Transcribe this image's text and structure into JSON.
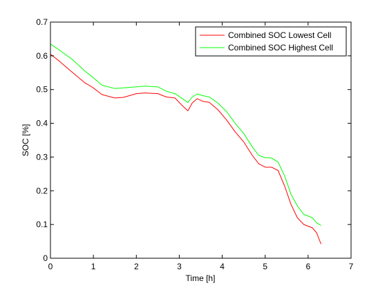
{
  "chart_data": {
    "type": "line",
    "title": "",
    "xlabel": "Time [h]",
    "ylabel": "SOC [%]",
    "xlim": [
      0,
      7
    ],
    "ylim": [
      0,
      0.7
    ],
    "xticks": [
      "0",
      "1",
      "2",
      "3",
      "4",
      "5",
      "6",
      "7"
    ],
    "yticks": [
      "0",
      "0.1",
      "0.2",
      "0.3",
      "0.4",
      "0.5",
      "0.6",
      "0.7"
    ],
    "grid": false,
    "legend_position": "top-right",
    "series": [
      {
        "name": "Combined SOC Lowest Cell",
        "color": "#ff0000",
        "x": [
          0.0,
          0.2,
          0.5,
          0.8,
          1.0,
          1.2,
          1.5,
          1.7,
          2.0,
          2.2,
          2.5,
          2.7,
          2.9,
          3.05,
          3.2,
          3.3,
          3.42,
          3.55,
          3.7,
          3.9,
          4.1,
          4.3,
          4.5,
          4.7,
          4.85,
          5.0,
          5.15,
          5.3,
          5.45,
          5.6,
          5.75,
          5.9,
          6.1,
          6.2,
          6.3
        ],
        "y": [
          0.605,
          0.585,
          0.552,
          0.52,
          0.505,
          0.485,
          0.475,
          0.477,
          0.488,
          0.49,
          0.488,
          0.478,
          0.475,
          0.455,
          0.437,
          0.46,
          0.473,
          0.465,
          0.462,
          0.44,
          0.41,
          0.375,
          0.345,
          0.305,
          0.28,
          0.27,
          0.27,
          0.26,
          0.215,
          0.16,
          0.12,
          0.1,
          0.09,
          0.075,
          0.042
        ]
      },
      {
        "name": "Combined SOC Highest Cell",
        "color": "#00ff00",
        "x": [
          0.0,
          0.2,
          0.5,
          0.8,
          1.0,
          1.2,
          1.5,
          1.7,
          2.0,
          2.2,
          2.5,
          2.7,
          2.9,
          3.05,
          3.2,
          3.3,
          3.42,
          3.55,
          3.7,
          3.9,
          4.1,
          4.3,
          4.5,
          4.7,
          4.85,
          5.0,
          5.15,
          5.3,
          5.45,
          5.6,
          5.75,
          5.9,
          6.1,
          6.2,
          6.3
        ],
        "y": [
          0.635,
          0.618,
          0.59,
          0.555,
          0.535,
          0.513,
          0.503,
          0.505,
          0.508,
          0.51,
          0.508,
          0.495,
          0.488,
          0.475,
          0.462,
          0.478,
          0.487,
          0.482,
          0.478,
          0.46,
          0.435,
          0.4,
          0.37,
          0.33,
          0.305,
          0.298,
          0.297,
          0.285,
          0.245,
          0.19,
          0.155,
          0.13,
          0.12,
          0.105,
          0.097
        ]
      }
    ]
  }
}
